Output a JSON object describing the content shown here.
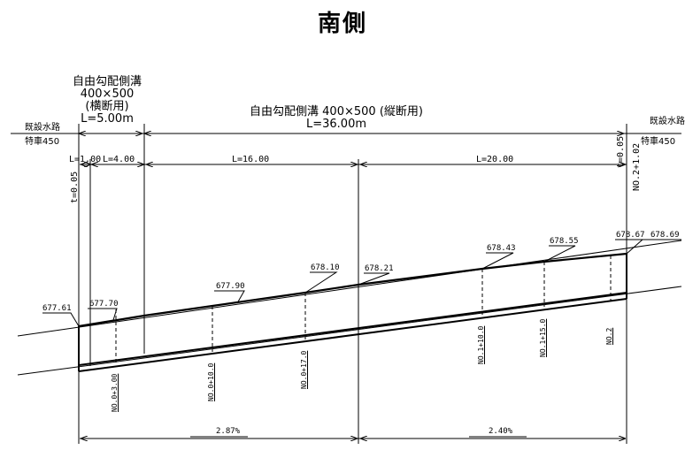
{
  "title": "南側",
  "left_section": {
    "label": "既設水路",
    "spec": "特車450"
  },
  "right_section": {
    "label": "既設水路",
    "spec": "特車450"
  },
  "transverse_ditch": {
    "line1": "自由勾配側溝",
    "line2": "400×500",
    "line3": "(横断用)",
    "length": "L=5.00m"
  },
  "longitudinal_ditch": {
    "line1": "自由勾配側溝 400×500 (縦断用)",
    "length": "L=36.00m"
  },
  "segments": {
    "seg1": "L=1.00",
    "seg2": "L=4.00",
    "seg3": "L=16.00",
    "seg4": "L=20.00"
  },
  "thickness": {
    "left": "t=0.05",
    "right": "t=0.05"
  },
  "station_top": "NO.2+1.02",
  "elevations": {
    "e1": "677.61",
    "e2": "677.70",
    "e3": "677.90",
    "e4": "678.10",
    "e5": "678.21",
    "e6": "678.43",
    "e7": "678.55",
    "e8": "678.67",
    "e9": "678.69"
  },
  "stations": {
    "s1": "NO.0+3.00",
    "s2": "NO.0+10.0",
    "s3": "NO.0+17.0",
    "s4": "NO.1+10.0",
    "s5": "NO.1+15.0",
    "s6": "NO.2"
  },
  "grades": {
    "g1": "2.87%",
    "g2": "2.40%"
  }
}
